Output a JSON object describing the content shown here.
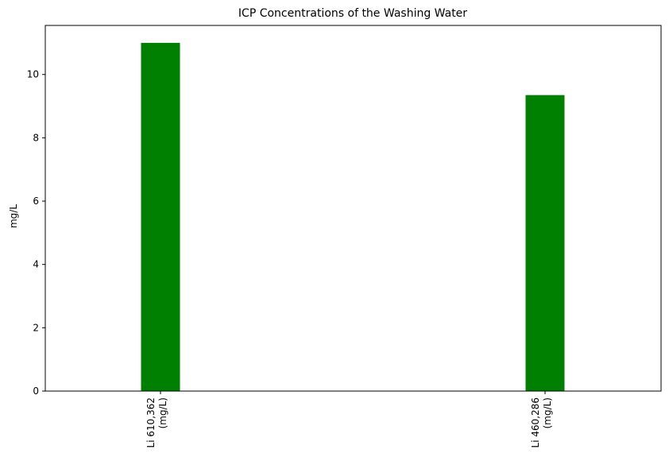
{
  "chart_data": {
    "type": "bar",
    "title": "ICP Concentrations of the Washing Water",
    "xlabel": "",
    "ylabel": "mg/L",
    "categories": [
      [
        "Li 610,362",
        "(mg/L)"
      ],
      [
        "Li 460,286",
        "(mg/L)"
      ]
    ],
    "values": [
      11.0,
      9.35
    ],
    "ylim": [
      0,
      11.55
    ],
    "yticks": [
      0,
      2,
      4,
      6,
      8,
      10
    ],
    "bar_color": "#008000",
    "grid": false,
    "legend": "none"
  }
}
